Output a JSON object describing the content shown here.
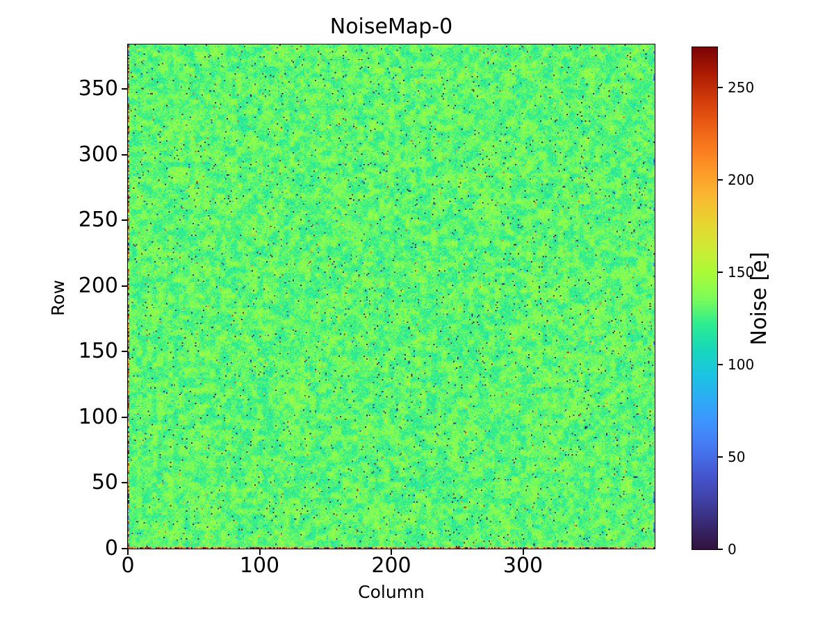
{
  "figure": {
    "background": "#ffffff",
    "text_color": "#000000"
  },
  "chart_data": {
    "type": "heatmap",
    "title": "NoiseMap-0",
    "xlabel": "Column",
    "ylabel": "Row",
    "x_range": [
      0,
      400
    ],
    "y_range": [
      0,
      384
    ],
    "x_ticks": [
      0,
      100,
      200,
      300
    ],
    "y_ticks": [
      0,
      50,
      100,
      150,
      200,
      250,
      300,
      350
    ],
    "grid": {
      "cols": 400,
      "rows": 384
    },
    "legend_position": "right-colorbar",
    "gridlines": false,
    "colorbar": {
      "label": "Noise [e]",
      "ticks": [
        0,
        50,
        100,
        150,
        200,
        250
      ],
      "vmin": 0,
      "vmax": 272,
      "colormap": "turbo",
      "stops": [
        [
          0.0,
          "#30123b"
        ],
        [
          0.05,
          "#392972"
        ],
        [
          0.1,
          "#4142a7"
        ],
        [
          0.15,
          "#4557d0"
        ],
        [
          0.2,
          "#4676f1"
        ],
        [
          0.25,
          "#3f92fe"
        ],
        [
          0.3,
          "#2cacf4"
        ],
        [
          0.35,
          "#1ac5e0"
        ],
        [
          0.4,
          "#18d8b8"
        ],
        [
          0.45,
          "#2eed8e"
        ],
        [
          0.5,
          "#7cfc58"
        ],
        [
          0.55,
          "#a9fb37"
        ],
        [
          0.6,
          "#cdea34"
        ],
        [
          0.65,
          "#e7d52f"
        ],
        [
          0.7,
          "#f8ba31"
        ],
        [
          0.75,
          "#fd9b28"
        ],
        [
          0.8,
          "#f87a1d"
        ],
        [
          0.85,
          "#e95913"
        ],
        [
          0.9,
          "#cf3909"
        ],
        [
          0.95,
          "#aa1902"
        ],
        [
          1.0,
          "#7a0403"
        ]
      ]
    },
    "noise_model": {
      "description": "Pixel-detector noise map, 400 columns x 384 rows: mottled green background around 130 e with teal patches, ~1.2% near-zero dark pixels, sparse cyan/yellow/orange speckles; column 0 and row 0 run hot (orange/red 175-272 e with dark and blue outliers); rare blue low-noise streaks along left and right edges.",
      "seed": 1337,
      "base_mean": 131,
      "base_mottle_amp": 11,
      "pixel_std": 5,
      "dark_fraction": 0.012,
      "dark_range": [
        2,
        28
      ],
      "cool_fraction": 0.008,
      "cool_range": [
        86,
        103
      ],
      "warm_fraction": 0.003,
      "warm_range": [
        160,
        215
      ],
      "hot_fraction": 0.002,
      "hot_range": [
        215,
        272
      ],
      "edge_hot_range": [
        175,
        272
      ],
      "edge_blue_range": [
        40,
        95
      ]
    }
  }
}
